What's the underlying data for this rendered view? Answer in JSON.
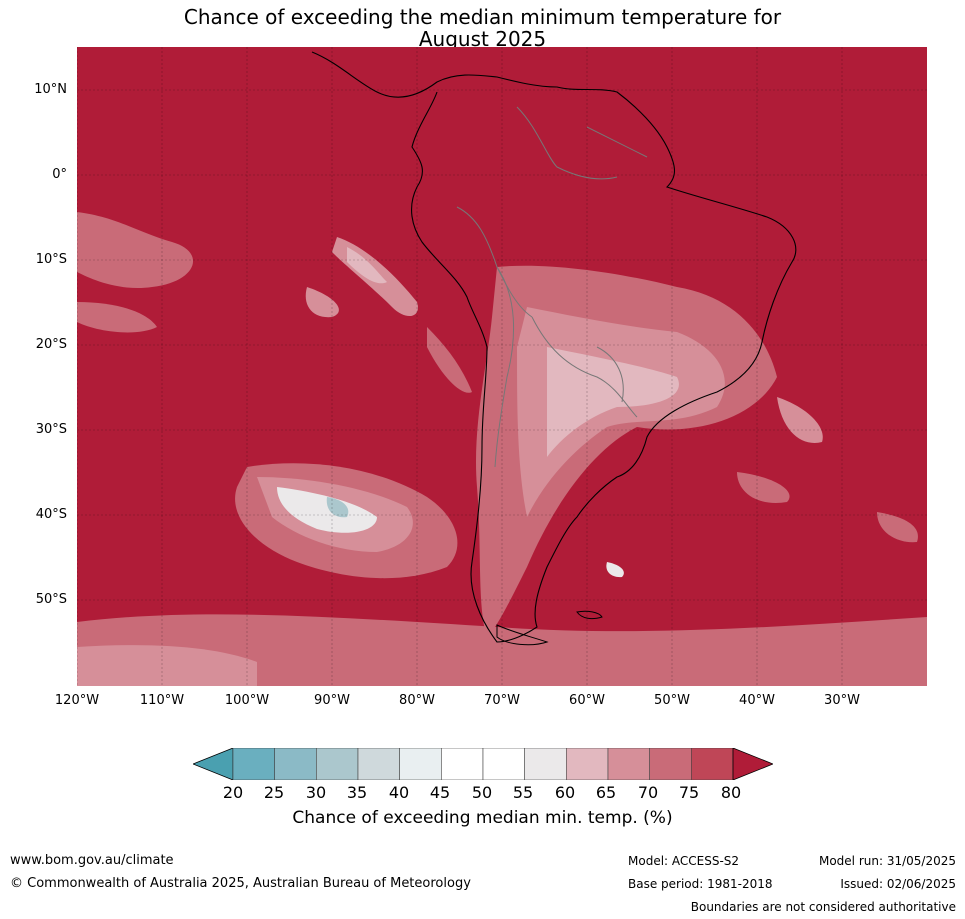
{
  "title": {
    "line1": "Chance of exceeding the median minimum temperature for",
    "line2": "August 2025"
  },
  "map": {
    "lat_labels": [
      "10°N",
      "0°",
      "10°S",
      "20°S",
      "30°S",
      "40°S",
      "50°S"
    ],
    "lon_labels": [
      "120°W",
      "110°W",
      "100°W",
      "90°W",
      "80°W",
      "70°W",
      "60°W",
      "50°W",
      "40°W",
      "30°W"
    ],
    "background_category_color": "#b01c38"
  },
  "colorbar": {
    "ticks": [
      "20",
      "25",
      "30",
      "35",
      "40",
      "45",
      "50",
      "55",
      "60",
      "65",
      "70",
      "75",
      "80"
    ],
    "colors": [
      "#4aa0b0",
      "#6aafbf",
      "#8bbac6",
      "#abc7cd",
      "#cfd9dc",
      "#e9eff1",
      "#ffffff",
      "#ffffff",
      "#ebe9ea",
      "#e2b8bf",
      "#d68f99",
      "#c96b78",
      "#bf4657",
      "#b01c38"
    ],
    "label": "Chance of exceeding median min. temp. (%)"
  },
  "footer": {
    "website": "www.bom.gov.au/climate",
    "copyright": "© Commonwealth of Australia 2025, Australian Bureau of Meteorology",
    "model": "Model: ACCESS-S2",
    "base_period": "Base period: 1981-2018",
    "model_run": "Model run: 31/05/2025",
    "issued": "Issued: 02/06/2025",
    "disclaimer": "Boundaries are not considered authoritative"
  }
}
